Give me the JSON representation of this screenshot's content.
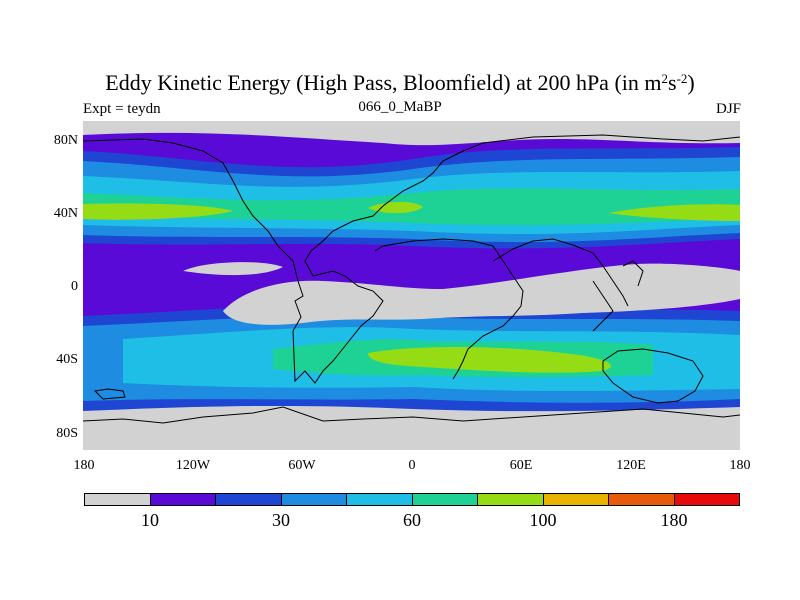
{
  "title": {
    "main": "Eddy Kinetic Energy (High Pass, Bloomfield) at 200 hPa (in m",
    "sup1": "2",
    "mid": "s",
    "sup2": "-2",
    "end": ")"
  },
  "subtitle": {
    "left": "Expt = teydn",
    "center": "066_0_MaBP",
    "right": "DJF"
  },
  "map": {
    "y_labels": [
      "80N",
      "40N",
      "0",
      "40S",
      "80S"
    ],
    "x_labels": [
      "180",
      "120W",
      "60W",
      "0",
      "60E",
      "120E",
      "180"
    ]
  },
  "colorbar": {
    "colors": [
      "#d2d2d2",
      "#5a0ad7",
      "#1e46d2",
      "#1e8ce1",
      "#1ebee6",
      "#1ed296",
      "#96dc14",
      "#e6b400",
      "#e65a0a",
      "#e60a0a"
    ],
    "labels": [
      "10",
      "30",
      "60",
      "100",
      "180"
    ]
  }
}
